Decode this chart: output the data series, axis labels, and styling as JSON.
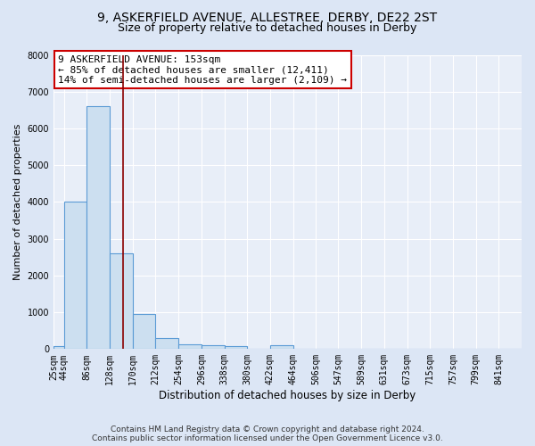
{
  "title1": "9, ASKERFIELD AVENUE, ALLESTREE, DERBY, DE22 2ST",
  "title2": "Size of property relative to detached houses in Derby",
  "xlabel": "Distribution of detached houses by size in Derby",
  "ylabel": "Number of detached properties",
  "bar_values": [
    80,
    4000,
    6600,
    2600,
    950,
    300,
    120,
    100,
    90,
    0,
    100,
    0,
    0,
    0,
    0,
    0,
    0,
    0,
    0,
    0,
    0
  ],
  "bin_edges": [
    25,
    44,
    86,
    128,
    170,
    212,
    254,
    296,
    338,
    380,
    422,
    464,
    506,
    547,
    589,
    631,
    673,
    715,
    757,
    799,
    841,
    883
  ],
  "xlabels": [
    "25sqm",
    "44sqm",
    "86sqm",
    "128sqm",
    "170sqm",
    "212sqm",
    "254sqm",
    "296sqm",
    "338sqm",
    "380sqm",
    "422sqm",
    "464sqm",
    "506sqm",
    "547sqm",
    "589sqm",
    "631sqm",
    "673sqm",
    "715sqm",
    "757sqm",
    "799sqm",
    "841sqm"
  ],
  "bar_color": "#ccdff0",
  "bar_edge_color": "#5b9bd5",
  "vline_x": 153,
  "vline_color": "#8b0000",
  "annotation_text": "9 ASKERFIELD AVENUE: 153sqm\n← 85% of detached houses are smaller (12,411)\n14% of semi-detached houses are larger (2,109) →",
  "annotation_box_color": "#ffffff",
  "annotation_box_edge": "#cc0000",
  "ylim": [
    0,
    8000
  ],
  "yticks": [
    0,
    1000,
    2000,
    3000,
    4000,
    5000,
    6000,
    7000,
    8000
  ],
  "bg_color": "#dce6f5",
  "plot_bg_color": "#e8eef8",
  "footer": "Contains HM Land Registry data © Crown copyright and database right 2024.\nContains public sector information licensed under the Open Government Licence v3.0.",
  "title1_fontsize": 10,
  "title2_fontsize": 9,
  "xlabel_fontsize": 8.5,
  "ylabel_fontsize": 8,
  "tick_fontsize": 7,
  "annotation_fontsize": 8,
  "footer_fontsize": 6.5
}
